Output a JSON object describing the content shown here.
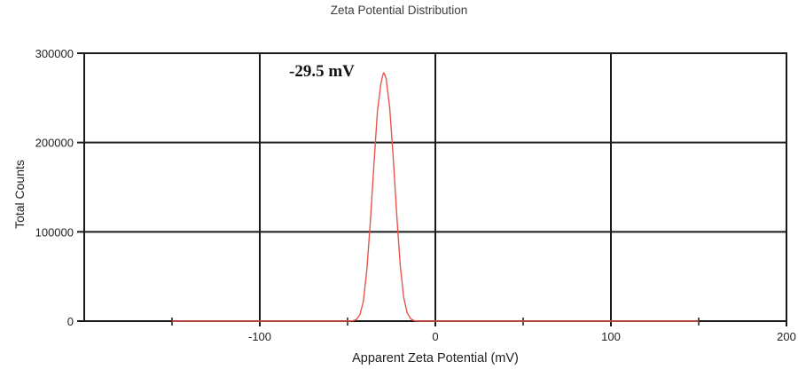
{
  "title": "Zeta Potential Distribution",
  "annotation": "-29.5 mV",
  "colors": {
    "line": "#e8554d",
    "grid": "#1a1a1a",
    "axis": "#1a1a1a"
  },
  "chart_data": {
    "type": "line",
    "title": "Zeta Potential Distribution",
    "xlabel": "Apparent Zeta Potential (mV)",
    "ylabel": "Total Counts",
    "xlim": [
      -200,
      200
    ],
    "ylim": [
      0,
      300000
    ],
    "x_major_ticks": [
      -100,
      0,
      100,
      200
    ],
    "x_minor_ticks": [
      -150,
      -50,
      50,
      150
    ],
    "y_ticks": [
      0,
      100000,
      200000,
      300000
    ],
    "grid_x": [
      -100,
      0,
      100
    ],
    "grid_y": [
      100000,
      200000
    ],
    "grid": true,
    "legend": "none",
    "peak_label": "-29.5 mV",
    "peak_mv": -29.5,
    "peak_counts": 278000,
    "series": [
      {
        "name": "Zeta potential distribution",
        "points": [
          [
            -150,
            0
          ],
          [
            -100,
            0
          ],
          [
            -60,
            0
          ],
          [
            -50,
            0
          ],
          [
            -47,
            400
          ],
          [
            -45,
            1800
          ],
          [
            -43,
            7000
          ],
          [
            -41,
            22000
          ],
          [
            -39,
            58000
          ],
          [
            -37,
            112000
          ],
          [
            -35,
            175000
          ],
          [
            -33,
            235000
          ],
          [
            -31,
            266000
          ],
          [
            -30,
            275000
          ],
          [
            -29.5,
            278000
          ],
          [
            -29,
            277000
          ],
          [
            -28,
            271000
          ],
          [
            -26,
            239000
          ],
          [
            -24,
            183000
          ],
          [
            -22,
            119000
          ],
          [
            -20,
            62000
          ],
          [
            -18,
            26000
          ],
          [
            -16,
            9000
          ],
          [
            -14,
            2500
          ],
          [
            -12,
            500
          ],
          [
            -10,
            0
          ],
          [
            0,
            0
          ],
          [
            50,
            0
          ],
          [
            100,
            0
          ],
          [
            150,
            0
          ]
        ]
      }
    ]
  }
}
